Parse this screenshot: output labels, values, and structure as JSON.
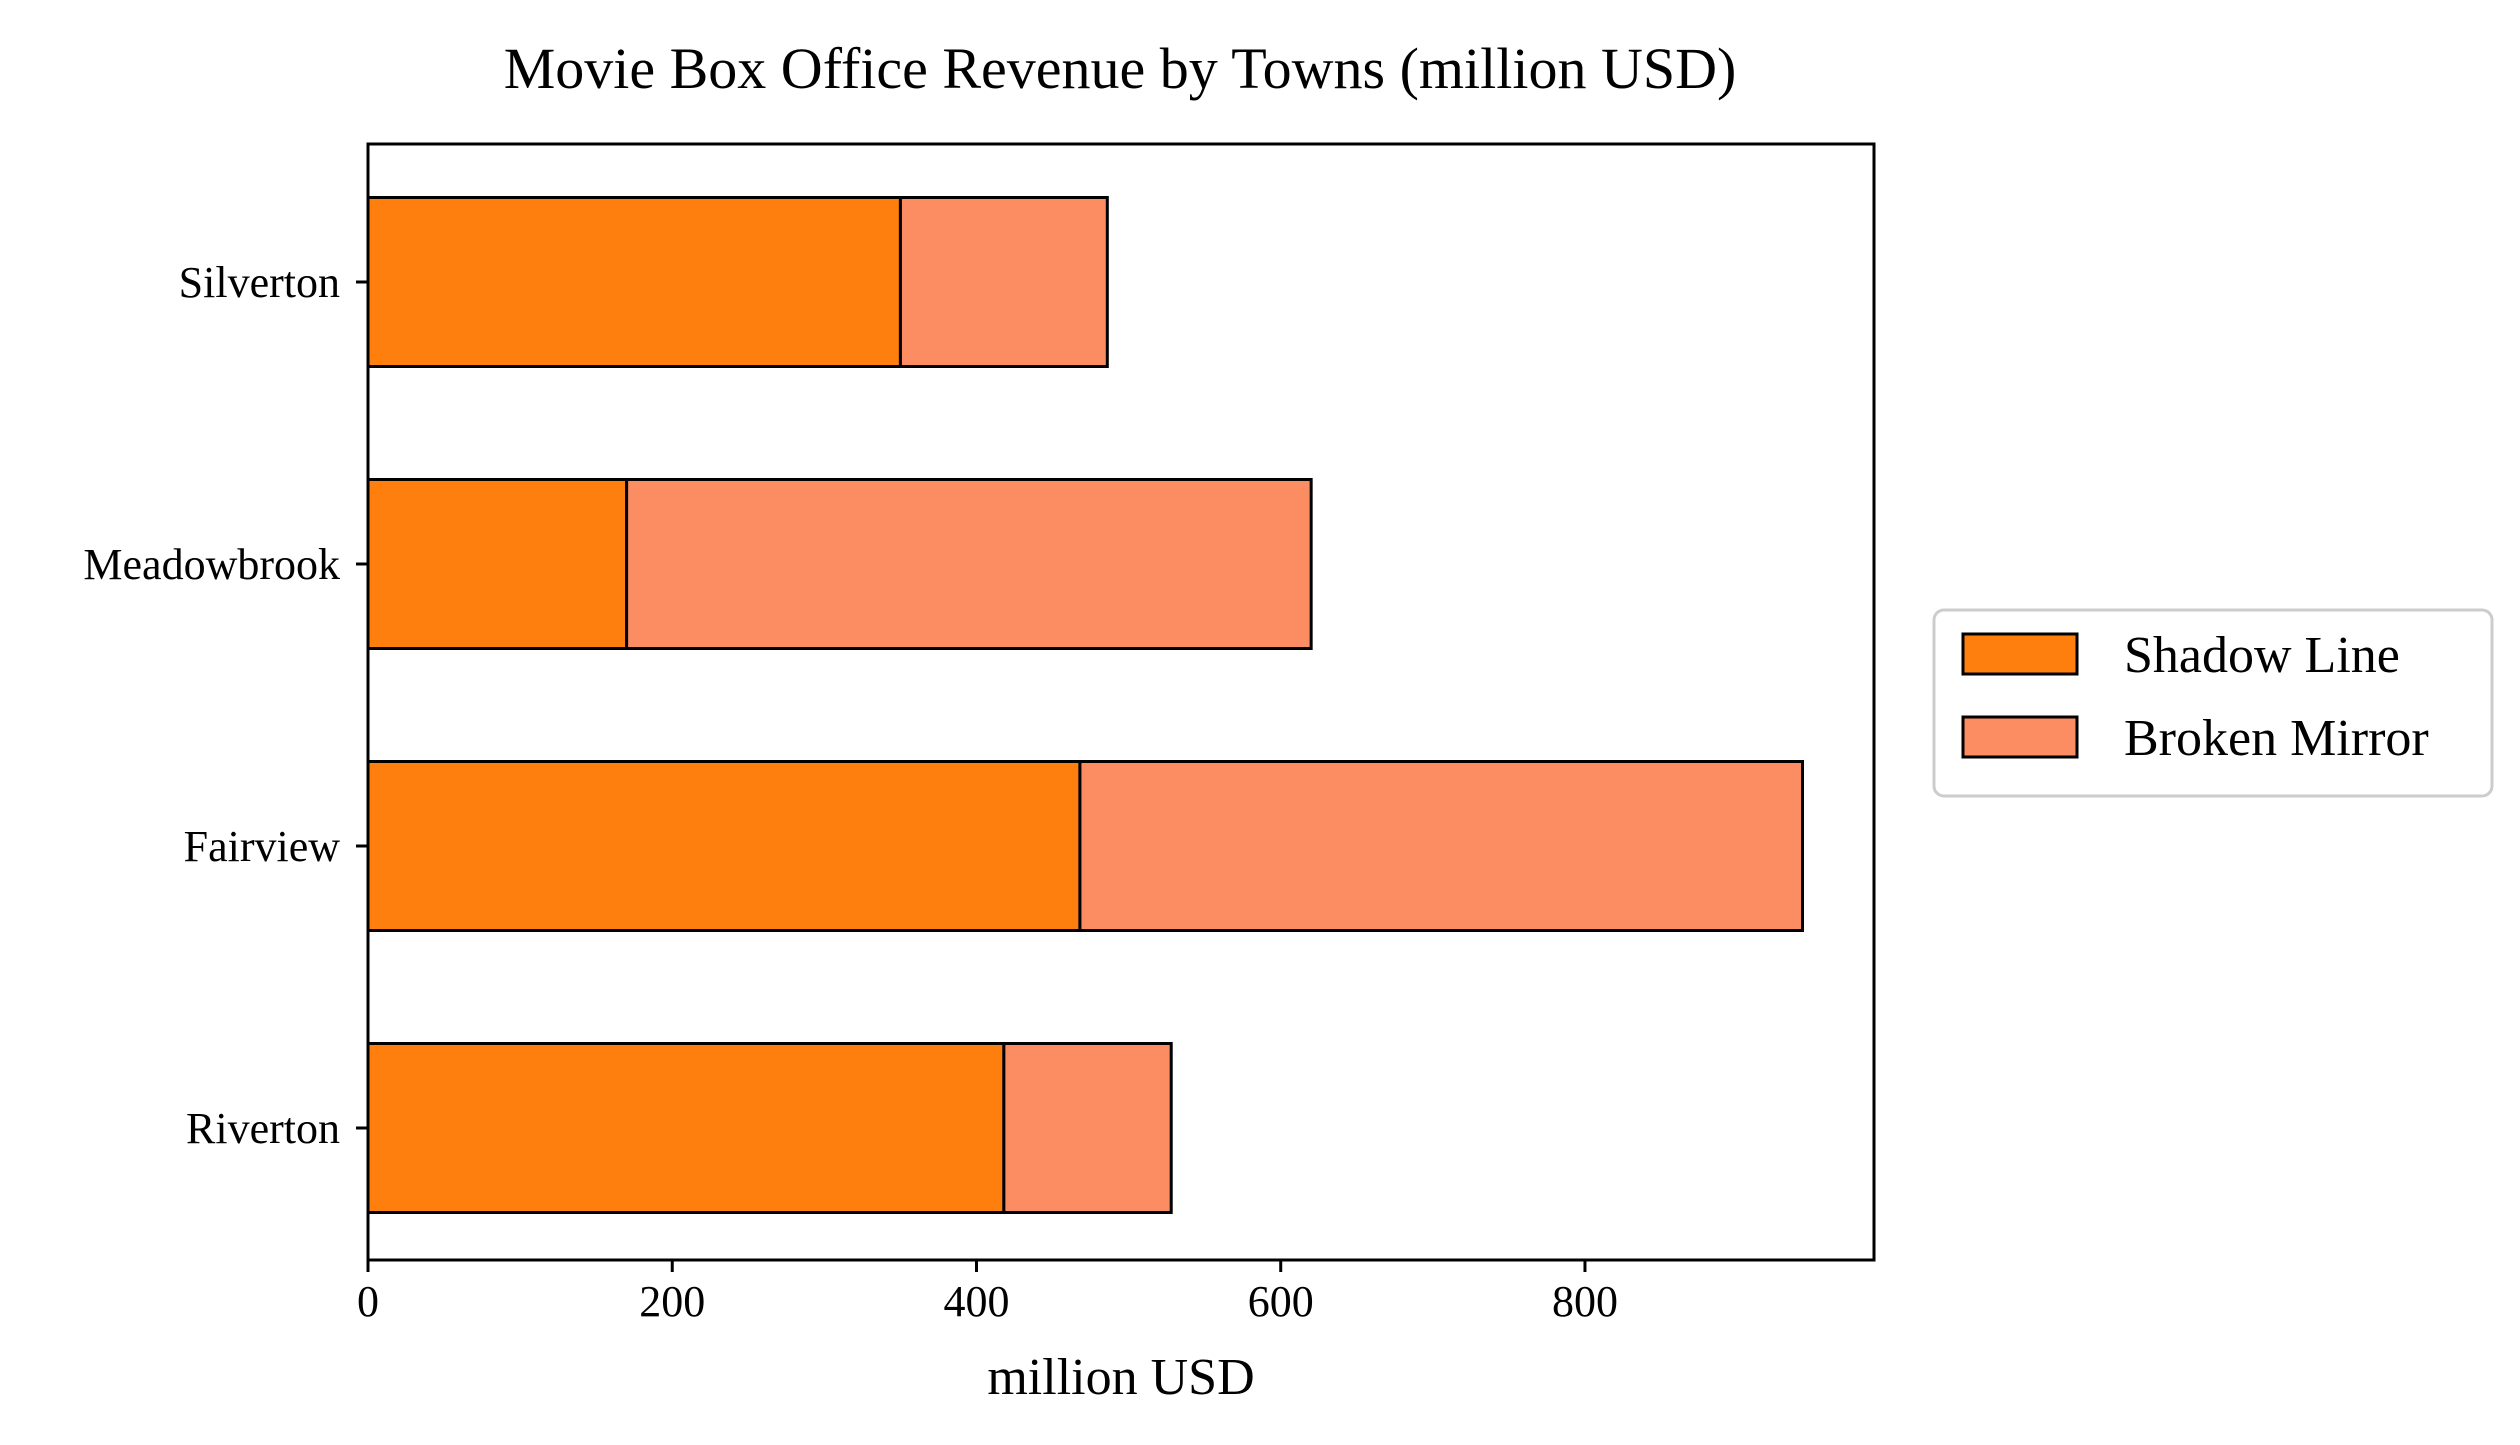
{
  "chart_data": {
    "type": "bar",
    "orientation": "horizontal",
    "stacked": true,
    "title": "Movie Box Office Revenue by Towns (million USD)",
    "xlabel": "million USD",
    "ylabel": "",
    "categories": [
      "Silverton",
      "Meadowbrook",
      "Fairview",
      "Riverton"
    ],
    "series": [
      {
        "name": "Shadow Line",
        "color": "#ff7f0e",
        "values": [
          350,
          170,
          468,
          418
        ]
      },
      {
        "name": "Broken Mirror",
        "color": "#fc8d62",
        "values": [
          136,
          450,
          475,
          110
        ]
      }
    ],
    "xlim": [
      0,
      990
    ],
    "xticks": [
      0,
      200,
      400,
      600,
      800
    ],
    "grid": false,
    "legend_position": "right"
  }
}
